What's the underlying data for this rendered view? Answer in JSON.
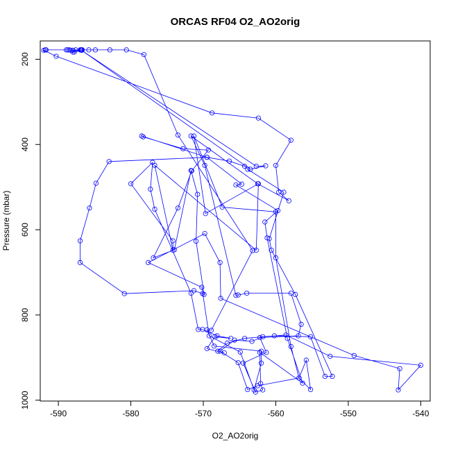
{
  "chart_data": {
    "type": "line",
    "title": "ORCAS RF04 O2_AO2orig",
    "xlabel": "O2_AO2orig",
    "ylabel": "Pressure (mbar)",
    "xlim": [
      -592.5,
      -538.7
    ],
    "ylim": [
      1002,
      157
    ],
    "y_reversed": true,
    "grid": false,
    "legend": "none",
    "x_ticks": [
      -590,
      -580,
      -570,
      -560,
      -550,
      -540
    ],
    "y_ticks": [
      200,
      400,
      600,
      800,
      1000
    ],
    "marker": "open-circle",
    "color": "#0000ff",
    "series": [
      {
        "points": [
          [
            -591.7,
            178
          ],
          [
            -592.0,
            179
          ],
          [
            -590.3,
            193
          ],
          [
            -568.8,
            326
          ],
          [
            -562.4,
            338
          ],
          [
            -557.9,
            390
          ],
          [
            -560.0,
            449
          ],
          [
            -559.6,
            512
          ],
          [
            -558.2,
            532
          ],
          [
            -562.5,
            492
          ],
          [
            -571.7,
            380
          ],
          [
            -569.8,
            449
          ],
          [
            -565.5,
            754
          ],
          [
            -565.2,
            753
          ],
          [
            -564.0,
            749
          ],
          [
            -557.9,
            749
          ],
          [
            -556.5,
            822
          ],
          [
            -556.9,
            849
          ],
          [
            -562.2,
            853
          ],
          [
            -561.3,
            888
          ],
          [
            -564.5,
            913
          ],
          [
            -562.8,
            981
          ],
          [
            -561.8,
            976
          ],
          [
            -562.1,
            961
          ],
          [
            -562.2,
            888
          ],
          [
            -556.3,
            960
          ],
          [
            -558.4,
            855
          ],
          [
            -561.2,
            619
          ],
          [
            -561.5,
            582
          ],
          [
            -559.7,
            555
          ],
          [
            -565.5,
            495
          ],
          [
            -564.7,
            493
          ],
          [
            -569.5,
            430
          ],
          [
            -578.5,
            380
          ],
          [
            -578.3,
            382
          ],
          [
            -572.8,
            410
          ],
          [
            -569.3,
            413
          ],
          [
            -571.6,
            462
          ],
          [
            -573.5,
            549
          ],
          [
            -576.9,
            666
          ],
          [
            -574.0,
            647
          ],
          [
            -571.7,
            461
          ],
          [
            -570.8,
            517
          ],
          [
            -571.0,
            627
          ],
          [
            -569.9,
            752
          ],
          [
            -570.1,
            750
          ],
          [
            -571.3,
            743
          ],
          [
            -580.9,
            750
          ],
          [
            -587.0,
            677
          ],
          [
            -587.0,
            626
          ],
          [
            -585.7,
            549
          ],
          [
            -584.8,
            491
          ],
          [
            -583.0,
            440
          ],
          [
            -569.5,
            430
          ],
          [
            -566.4,
            439
          ],
          [
            -564.3,
            451
          ],
          [
            -563.9,
            458
          ],
          [
            -558.9,
            512
          ],
          [
            -560.9,
            621
          ],
          [
            -560.6,
            648
          ],
          [
            -557.3,
            752
          ],
          [
            -552.2,
            944
          ],
          [
            -553.2,
            944
          ],
          [
            -555.2,
            851
          ],
          [
            -560.2,
            849
          ],
          [
            -564.3,
            855
          ],
          [
            -566.7,
            866
          ],
          [
            -568.0,
            885
          ],
          [
            -567.1,
            889
          ],
          [
            -569.5,
            879
          ],
          [
            -568.4,
            851
          ],
          [
            -566.2,
            855
          ],
          [
            -568.1,
            849
          ],
          [
            -570.1,
            834
          ],
          [
            -570.7,
            834
          ],
          [
            -571.7,
            749
          ],
          [
            -576.7,
            552
          ],
          [
            -577.3,
            505
          ],
          [
            -577.0,
            442
          ],
          [
            -580.0,
            492
          ],
          [
            -574.2,
            626
          ],
          [
            -574.2,
            648
          ],
          [
            -576.7,
            449
          ],
          [
            -562.7,
            648
          ],
          [
            -562.4,
            492
          ],
          [
            -569.7,
            562
          ],
          [
            -571.3,
            380
          ],
          [
            -567.4,
            547
          ],
          [
            -560.0,
            558
          ],
          [
            -560.0,
            666
          ],
          [
            -557.9,
            874
          ],
          [
            -556.8,
            948
          ],
          [
            -555.8,
            906
          ],
          [
            -555.2,
            975
          ],
          [
            -556.8,
            948
          ],
          [
            -562.5,
            966
          ],
          [
            -563.9,
            975
          ],
          [
            -565.2,
            912
          ],
          [
            -567.7,
            885
          ],
          [
            -565.7,
            859
          ],
          [
            -563.3,
            862
          ],
          [
            -561.8,
            851
          ],
          [
            -558.6,
            847
          ],
          [
            -552.5,
            897
          ],
          [
            -540.0,
            918
          ],
          [
            -543.1,
            976
          ],
          [
            -542.9,
            926
          ],
          [
            -549.2,
            895
          ],
          [
            -567.6,
            761
          ],
          [
            -567.7,
            677
          ],
          [
            -569.8,
            609
          ],
          [
            -577.6,
            677
          ],
          [
            -570.2,
            735
          ],
          [
            -569.2,
            849
          ],
          [
            -564.9,
            887
          ],
          [
            -563.0,
            976
          ],
          [
            -562.0,
            913
          ],
          [
            -562.0,
            885
          ],
          [
            -568.5,
            873
          ],
          [
            -569.5,
            835
          ],
          [
            -568.9,
            836
          ],
          [
            -563.2,
            649
          ],
          [
            -573.5,
            378
          ],
          [
            -578.2,
            189
          ],
          [
            -580.6,
            178
          ],
          [
            -582.9,
            178
          ],
          [
            -584.9,
            178
          ],
          [
            -585.8,
            178
          ],
          [
            -586.7,
            178
          ],
          [
            -586.8,
            178
          ],
          [
            -587.6,
            178
          ],
          [
            -587.8,
            183
          ],
          [
            -588.3,
            179
          ],
          [
            -588.5,
            178
          ],
          [
            -588.7,
            178
          ],
          [
            -588.9,
            178
          ],
          [
            -586.9,
            178
          ],
          [
            -562.7,
            451
          ],
          [
            -561.4,
            450
          ],
          [
            -563.5,
            458
          ],
          [
            -586.8,
            179
          ],
          [
            -588.0,
            179
          ],
          [
            -588.0,
            183
          ],
          [
            -587.0,
            178
          ],
          [
            -586.8,
            178
          ],
          [
            -591.8,
            178
          ]
        ]
      }
    ]
  }
}
